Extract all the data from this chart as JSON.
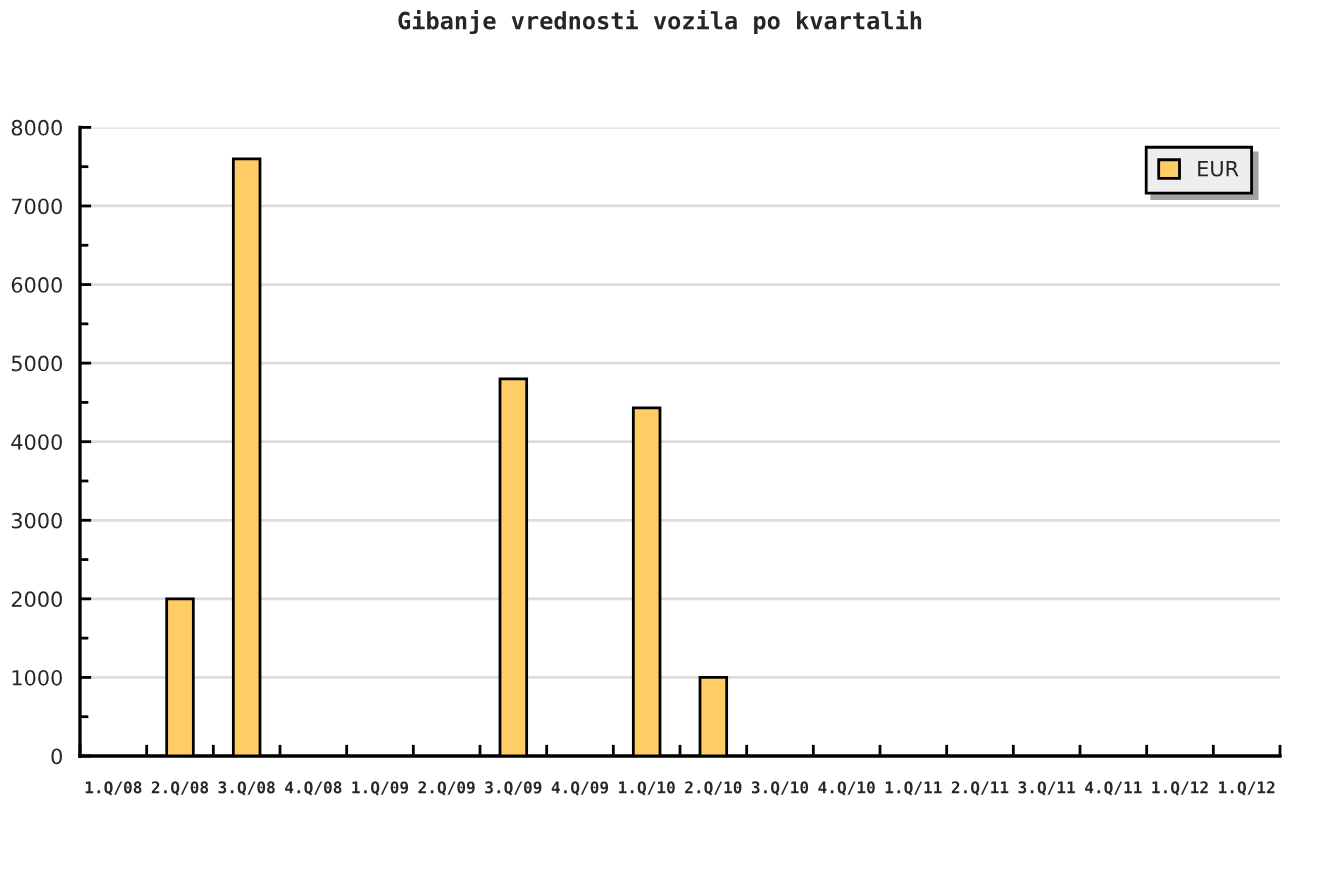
{
  "chart_data": {
    "type": "bar",
    "title": "Gibanje vrednosti vozila po kvartalih",
    "categories": [
      "1.Q/08",
      "2.Q/08",
      "3.Q/08",
      "4.Q/08",
      "1.Q/09",
      "2.Q/09",
      "3.Q/09",
      "4.Q/09",
      "1.Q/10",
      "2.Q/10",
      "3.Q/10",
      "4.Q/10",
      "1.Q/11",
      "2.Q/11",
      "3.Q/11",
      "4.Q/11",
      "1.Q/12",
      "1.Q/12"
    ],
    "series": [
      {
        "name": "EUR",
        "color": "#ffcc66",
        "values": [
          null,
          2000,
          7600,
          null,
          null,
          null,
          4800,
          null,
          4430,
          1000,
          null,
          null,
          null,
          null,
          null,
          null,
          null,
          null
        ]
      }
    ],
    "ylim": [
      0,
      8000
    ],
    "yticks": [
      0,
      {
        "value": 500,
        "label": null
      },
      1000,
      {
        "value": 1500,
        "label": null
      },
      2000,
      {
        "value": 2500,
        "label": null
      },
      3000,
      {
        "value": 3500,
        "label": null
      },
      4000,
      {
        "value": 4500,
        "label": null
      },
      5000,
      {
        "value": 5500,
        "label": null
      },
      6000,
      {
        "value": 6500,
        "label": null
      },
      7000,
      {
        "value": 7500,
        "label": null
      },
      8000
    ],
    "grid": "y",
    "legend": "top right"
  }
}
